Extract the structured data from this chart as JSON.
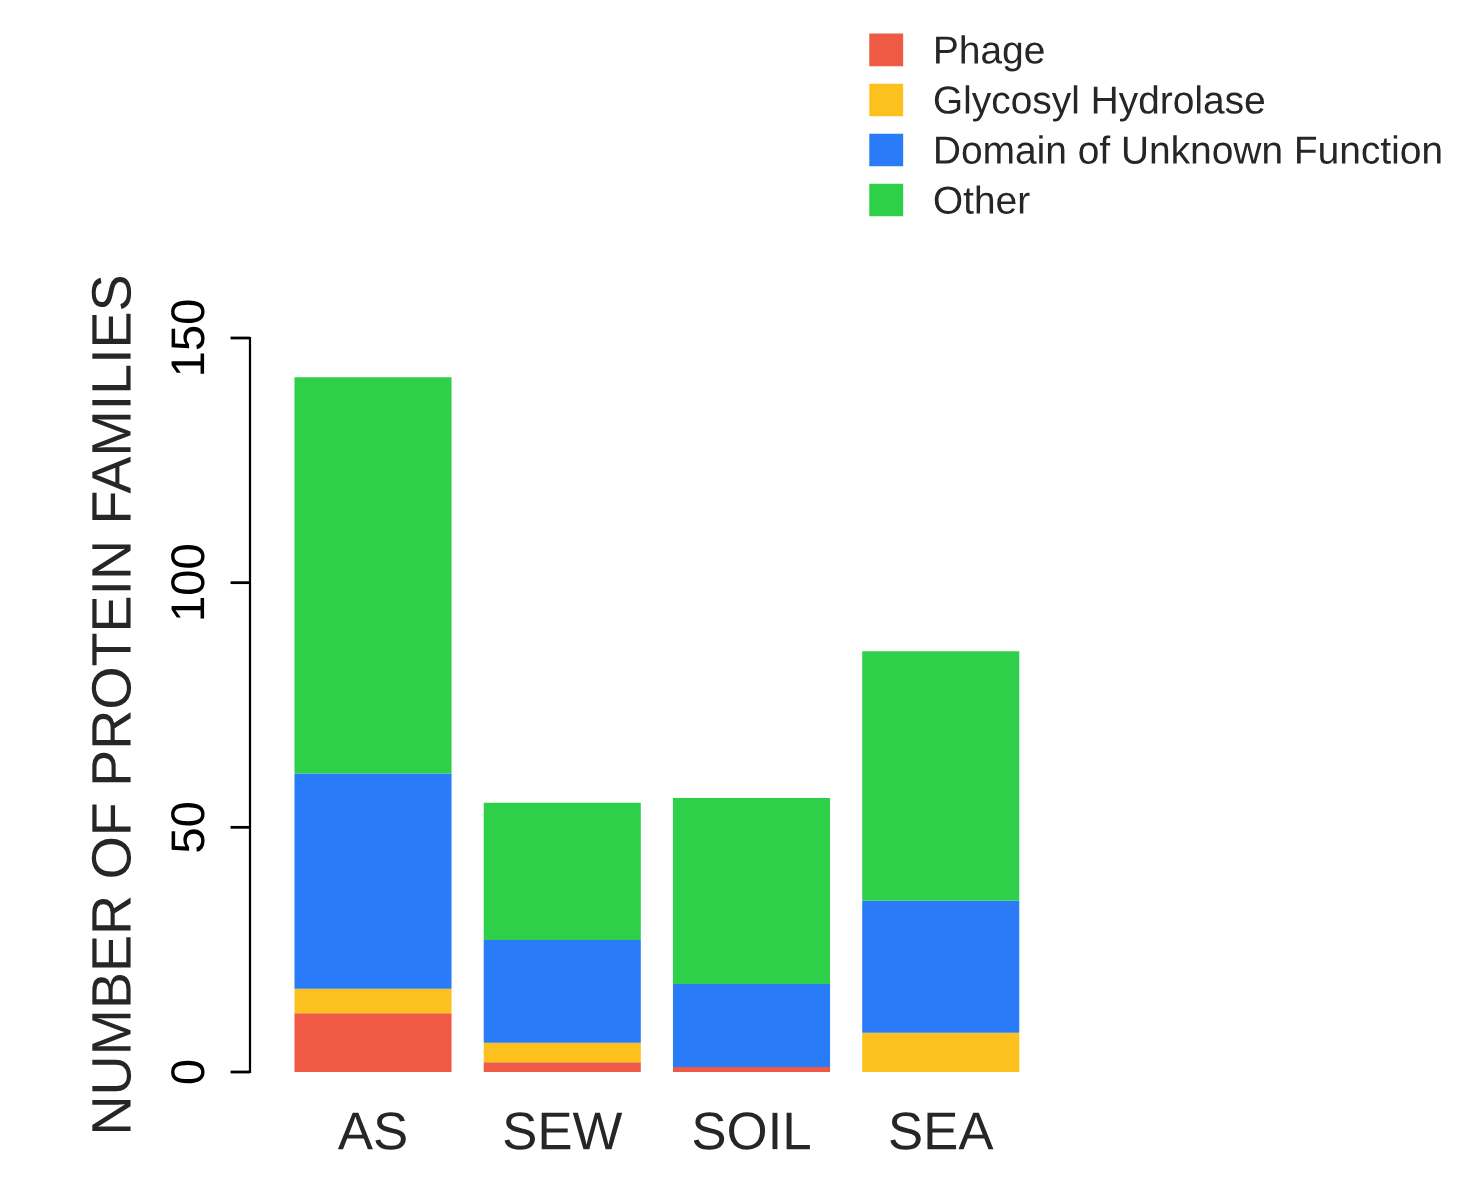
{
  "chart_data": {
    "type": "bar",
    "stacked": true,
    "ylabel": "NUMBER OF PROTEIN FAMILIES",
    "categories": [
      "AS",
      "SEW",
      "SOIL",
      "SEA"
    ],
    "series": [
      {
        "name": "Phage",
        "color": "#ee5a45",
        "values": [
          12,
          2,
          1,
          0
        ]
      },
      {
        "name": "Glycosyl Hydrolase",
        "color": "#fdc11f",
        "values": [
          5,
          4,
          0,
          8
        ]
      },
      {
        "name": "Domain of Unknown Function",
        "color": "#2a7bf7",
        "values": [
          44,
          21,
          17,
          27
        ]
      },
      {
        "name": "Other",
        "color": "#2ecf49",
        "values": [
          81,
          28,
          38,
          51
        ]
      }
    ],
    "ylim": [
      0,
      150
    ],
    "yticks": [
      0,
      50,
      100,
      150
    ],
    "grid": false,
    "legend": "top right"
  }
}
